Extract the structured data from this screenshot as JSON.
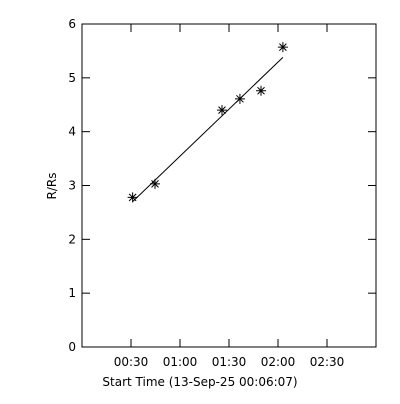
{
  "chart_data": {
    "type": "scatter",
    "x_label": "Start Time (13-Sep-25 00:06:07)",
    "y_label": "R/Rs",
    "xlim": [
      0,
      180
    ],
    "ylim": [
      0,
      6
    ],
    "xticks": [
      {
        "value": 30,
        "label": "00:30"
      },
      {
        "value": 60,
        "label": "01:00"
      },
      {
        "value": 90,
        "label": "01:30"
      },
      {
        "value": 120,
        "label": "02:00"
      },
      {
        "value": 150,
        "label": "02:30"
      }
    ],
    "yticks": [
      0,
      1,
      2,
      3,
      4,
      5,
      6
    ],
    "series": [
      {
        "marker": "asterisk",
        "color": "#000000",
        "x": [
          31,
          44.7,
          85.7,
          96.7,
          109.6,
          123
        ],
        "values": [
          2.78,
          3.03,
          4.4,
          4.61,
          4.76,
          5.57
        ]
      },
      {
        "marker": "line",
        "color": "#000000",
        "x": [
          31,
          123
        ],
        "values": [
          2.7,
          5.38
        ]
      }
    ]
  }
}
